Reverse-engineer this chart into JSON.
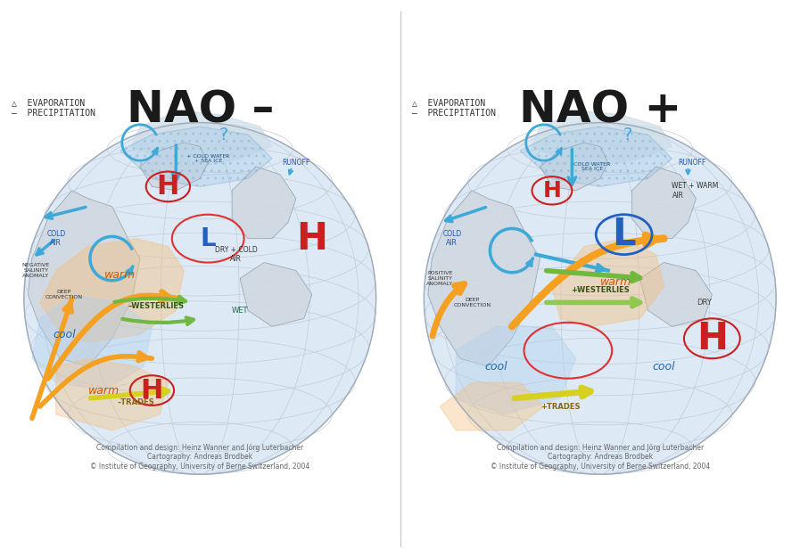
{
  "title_left": "NAO –",
  "title_right": "NAO +",
  "title_fontsize": 36,
  "title_fontweight": "bold",
  "title_color": "#1a1a1a",
  "background_color": "#ffffff",
  "legend_text": "△  EVAPORATION\n—  PRECIPITATION",
  "legend_fontsize": 7,
  "credit_text": "Compilation and design: Heinz Wanner and Jörg Luterbacher\nCartography: Andreas Brodbek\n© Institute of Geography, University of Berne Switzerland, 2004",
  "credit_fontsize": 5.5,
  "colors": {
    "ocean_color": "#ddeaf5",
    "land_color": "#d0d8e0",
    "grid_color": "#c0ccd8",
    "blue_arrow": "#3ea8d8",
    "orange_arrow": "#f5a020",
    "yellow_arrow": "#e8e020",
    "green_arrow": "#70c050",
    "red_circle": "#e03030",
    "H_color": "#cc2020",
    "L_color": "#2060c0",
    "warm_color": "#f5c080",
    "cool_color": "#b0d0f0",
    "pink_oval": "#e87090"
  }
}
